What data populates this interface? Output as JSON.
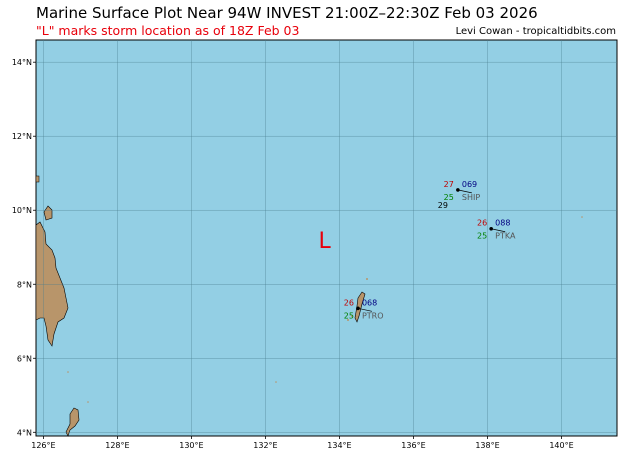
{
  "header": {
    "title": "Marine Surface Plot Near 94W INVEST 21:00Z–22:30Z Feb 03 2026",
    "subtitle": "\"L\" marks storm location as of 18Z Feb 03",
    "credit": "Levi Cowan - tropicaltidbits.com"
  },
  "map": {
    "ocean_color": "#93cfe4",
    "land_color": "#b8956a",
    "lon_range": [
      125.8,
      141.5
    ],
    "lat_range": [
      3.9,
      14.6
    ],
    "lon_ticks": [
      "126°E",
      "128°E",
      "130°E",
      "132°E",
      "134°E",
      "136°E",
      "138°E",
      "140°E"
    ],
    "lat_ticks": [
      "14°N",
      "12°N",
      "10°N",
      "8°N",
      "6°N",
      "4°N"
    ],
    "storm": {
      "label": "L",
      "lon": 133.6,
      "lat": 9.2,
      "color": "#e8000b"
    },
    "observations": [
      {
        "id": "SHIP",
        "lon": 137.2,
        "lat": 10.55,
        "temp": "27",
        "dew": "25",
        "pressure": "069",
        "extra": "29"
      },
      {
        "id": "PTKA",
        "lon": 138.1,
        "lat": 9.5,
        "temp": "26",
        "dew": "25",
        "pressure": "088",
        "extra": ""
      },
      {
        "id": "PTRO",
        "lon": 134.5,
        "lat": 7.35,
        "temp": "26",
        "dew": "25",
        "pressure": "068",
        "extra": ""
      }
    ]
  }
}
